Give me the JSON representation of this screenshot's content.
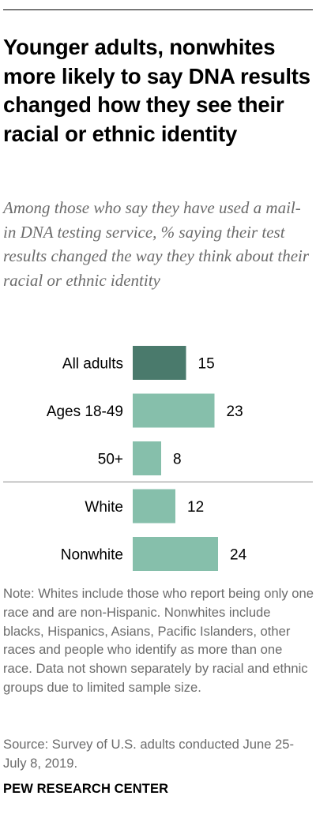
{
  "title": "Younger adults, nonwhites more likely to say DNA results changed how they see their racial or ethnic identity",
  "subtitle": "Among those who say they have used a mail-in DNA testing service, % saying their test results changed the way they think about their racial or ethnic identity",
  "note": "Note: Whites include those who report being only one race and are non-Hispanic. Nonwhites include blacks, Hispanics, Asians, Pacific Islanders, other races and people who identify as more than one race. Data not shown separately by racial and ethnic groups due to limited sample size.",
  "source": "Source: Survey of U.S. adults conducted June 25-July 8, 2019.",
  "org": "PEW RESEARCH CENTER",
  "colors": {
    "highlight": "#4a7a6c",
    "bar": "#86bfab",
    "divider": "#8a8a8a",
    "rule": "#000000"
  },
  "chart_data": {
    "type": "bar",
    "orientation": "horizontal",
    "categories": [
      "All adults",
      "Ages 18-49",
      "50+",
      "White",
      "Nonwhite"
    ],
    "values": [
      15,
      23,
      8,
      12,
      24
    ],
    "highlight": [
      "All adults"
    ],
    "groups": [
      [
        "All adults",
        "Ages 18-49",
        "50+"
      ],
      [
        "White",
        "Nonwhite"
      ]
    ],
    "title": "",
    "xlabel": "",
    "ylabel": "",
    "xlim": [
      0,
      24
    ],
    "grid": false,
    "legend": "none"
  }
}
